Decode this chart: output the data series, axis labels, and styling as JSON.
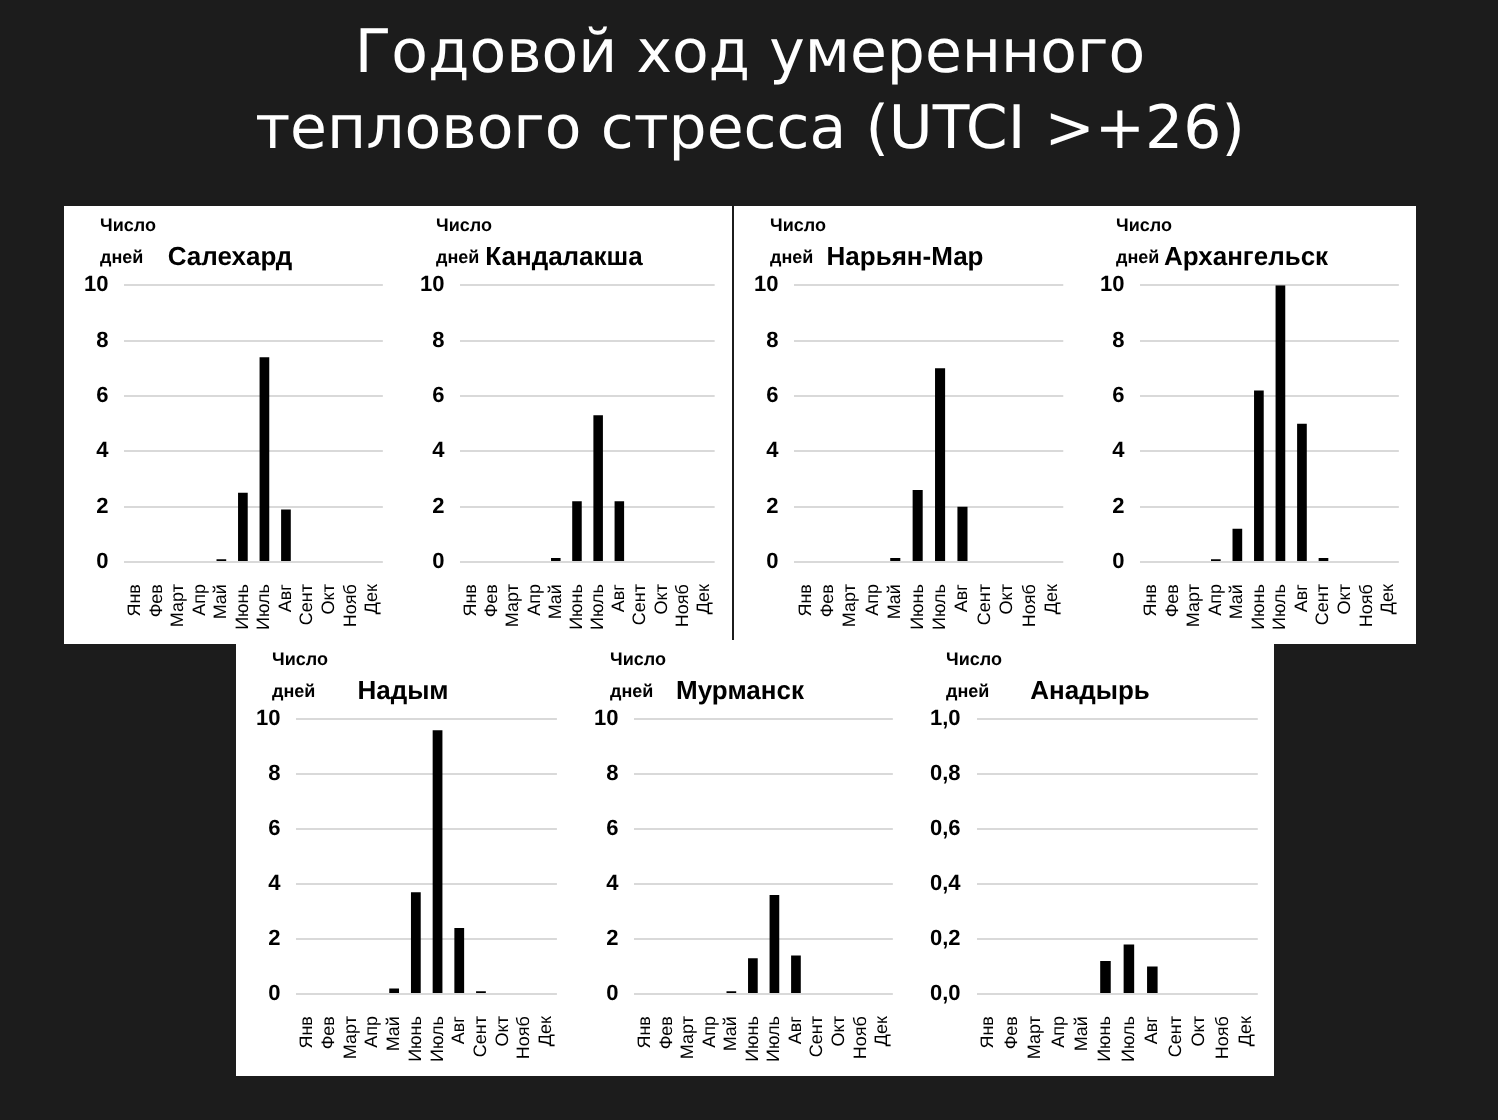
{
  "chart_data": [
    {
      "type": "bar",
      "title": "Салехард",
      "ylabel": "Число дней",
      "annotations": [
        "Годовой ход умеренного теплового стресса (UTCI >+26)"
      ],
      "categories": [
        "Янв",
        "Фев",
        "Март",
        "Апр",
        "Май",
        "Июнь",
        "Июль",
        "Авг",
        "Сент",
        "Окт",
        "Нояб",
        "Дек"
      ],
      "values": [
        0,
        0,
        0,
        0,
        0.1,
        2.5,
        7.4,
        1.9,
        0,
        0,
        0,
        0
      ],
      "color": "#000000",
      "ylim": [
        0,
        10
      ],
      "yticks": [
        0,
        2,
        4,
        6,
        8,
        10
      ],
      "grid": "y"
    },
    {
      "type": "bar",
      "title": "Кандалакша",
      "ylabel": "Число дней",
      "categories": [
        "Янв",
        "Фев",
        "Март",
        "Апр",
        "Май",
        "Июнь",
        "Июль",
        "Авг",
        "Сент",
        "Окт",
        "Нояб",
        "Дек"
      ],
      "values": [
        0,
        0,
        0,
        0,
        0.15,
        2.2,
        5.3,
        2.2,
        0,
        0,
        0,
        0
      ],
      "color": "#000000",
      "ylim": [
        0,
        10
      ],
      "yticks": [
        0,
        2,
        4,
        6,
        8,
        10
      ],
      "grid": "y"
    },
    {
      "type": "bar",
      "title": "Нарьян-Мар",
      "ylabel": "Число дней",
      "categories": [
        "Янв",
        "Фев",
        "Март",
        "Апр",
        "Май",
        "Июнь",
        "Июль",
        "Авг",
        "Сент",
        "Окт",
        "Нояб",
        "Дек"
      ],
      "values": [
        0,
        0,
        0,
        0,
        0.15,
        2.6,
        7.0,
        2.0,
        0,
        0,
        0,
        0
      ],
      "color": "#000000",
      "ylim": [
        0,
        10
      ],
      "yticks": [
        0,
        2,
        4,
        6,
        8,
        10
      ],
      "grid": "y"
    },
    {
      "type": "bar",
      "title": "Архангельск",
      "ylabel": "Число дней",
      "categories": [
        "Янв",
        "Фев",
        "Март",
        "Апр",
        "Май",
        "Июнь",
        "Июль",
        "Авг",
        "Сент",
        "Окт",
        "Нояб",
        "Дек"
      ],
      "values": [
        0,
        0,
        0,
        0.1,
        1.2,
        6.2,
        10,
        5.0,
        0.15,
        0,
        0,
        0
      ],
      "color": "#000000",
      "ylim": [
        0,
        10
      ],
      "yticks": [
        0,
        2,
        4,
        6,
        8,
        10
      ],
      "grid": "y"
    },
    {
      "type": "bar",
      "title": "Надым",
      "ylabel": "Число дней",
      "categories": [
        "Янв",
        "Фев",
        "Март",
        "Апр",
        "Май",
        "Июнь",
        "Июль",
        "Авг",
        "Сент",
        "Окт",
        "Нояб",
        "Дек"
      ],
      "values": [
        0,
        0,
        0,
        0,
        0.2,
        3.7,
        9.6,
        2.4,
        0.1,
        0,
        0,
        0
      ],
      "color": "#000000",
      "ylim": [
        0,
        10
      ],
      "yticks": [
        0,
        2,
        4,
        6,
        8,
        10
      ],
      "grid": "y"
    },
    {
      "type": "bar",
      "title": "Мурманск",
      "ylabel": "Число дней",
      "categories": [
        "Янв",
        "Фев",
        "Март",
        "Апр",
        "Май",
        "Июнь",
        "Июль",
        "Авг",
        "Сент",
        "Окт",
        "Нояб",
        "Дек"
      ],
      "values": [
        0,
        0,
        0,
        0,
        0.1,
        1.3,
        3.6,
        1.4,
        0,
        0,
        0,
        0
      ],
      "color": "#000000",
      "ylim": [
        0,
        10
      ],
      "yticks": [
        0,
        2,
        4,
        6,
        8,
        10
      ],
      "grid": "y"
    },
    {
      "type": "bar",
      "title": "Анадырь",
      "ylabel": "Число дней",
      "categories": [
        "Янв",
        "Фев",
        "Март",
        "Апр",
        "Май",
        "Июнь",
        "Июль",
        "Авг",
        "Сент",
        "Окт",
        "Нояб",
        "Дек"
      ],
      "values": [
        0,
        0,
        0,
        0,
        0,
        0.12,
        0.18,
        0.1,
        0,
        0,
        0,
        0
      ],
      "color": "#000000",
      "ylim": [
        0,
        1
      ],
      "yticks": [
        {
          "value": 0,
          "label": "0,0"
        },
        {
          "value": 0.2,
          "label": "0,2"
        },
        {
          "value": 0.4,
          "label": "0,4"
        },
        {
          "value": 0.6,
          "label": "0,6"
        },
        {
          "value": 0.8,
          "label": "0,8"
        },
        {
          "value": 1,
          "label": "1,0"
        }
      ],
      "grid": "y"
    }
  ]
}
